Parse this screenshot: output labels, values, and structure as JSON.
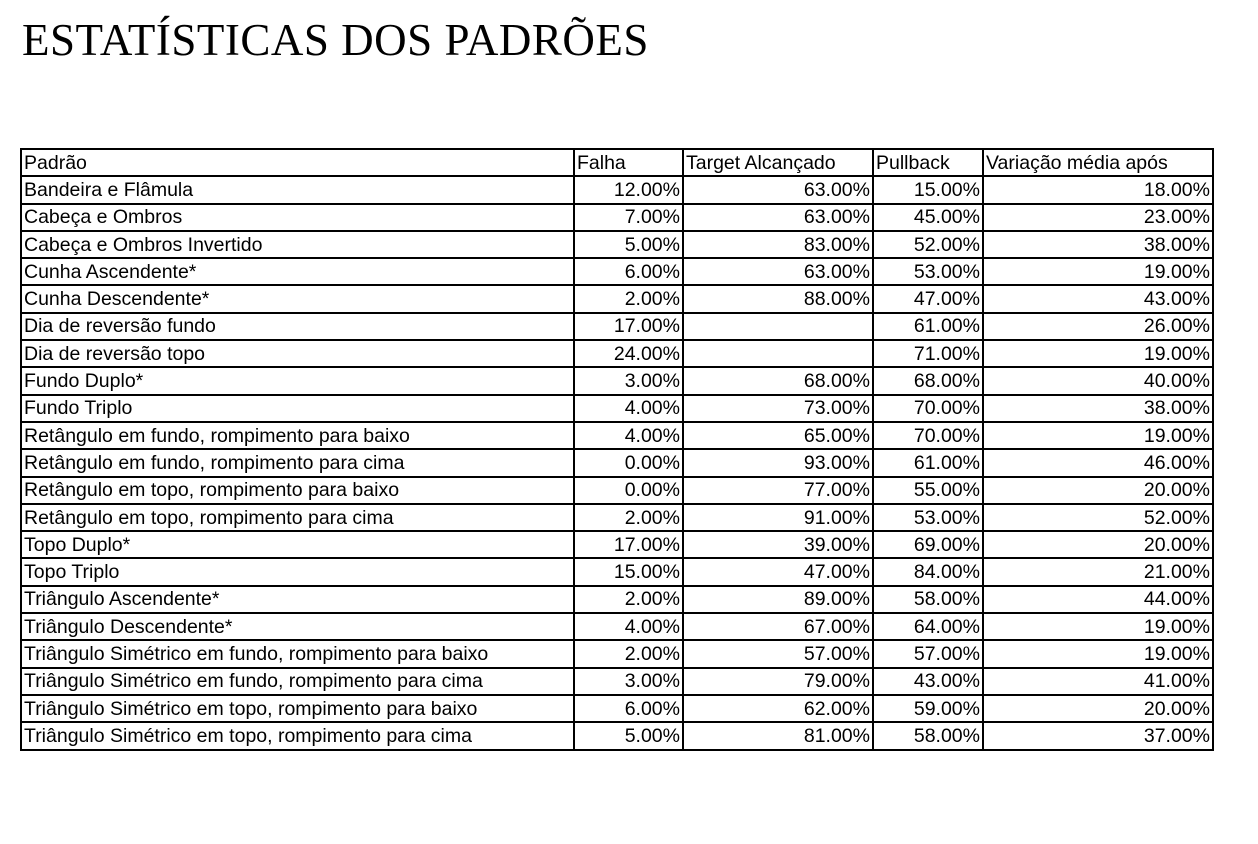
{
  "title": "ESTATÍSTICAS DOS PADRÕES",
  "table": {
    "headers": [
      "Padrão",
      "Falha",
      "Target Alcançado",
      "Pullback",
      "Variação média após"
    ],
    "rows": [
      [
        "Bandeira e Flâmula",
        "12.00%",
        "63.00%",
        "15.00%",
        "18.00%"
      ],
      [
        "Cabeça e Ombros",
        "7.00%",
        "63.00%",
        "45.00%",
        "23.00%"
      ],
      [
        "Cabeça e Ombros Invertido",
        "5.00%",
        "83.00%",
        "52.00%",
        "38.00%"
      ],
      [
        "Cunha Ascendente*",
        "6.00%",
        "63.00%",
        "53.00%",
        "19.00%"
      ],
      [
        "Cunha Descendente*",
        "2.00%",
        "88.00%",
        "47.00%",
        "43.00%"
      ],
      [
        "Dia de reversão fundo",
        "17.00%",
        "",
        "61.00%",
        "26.00%"
      ],
      [
        "Dia de reversão topo",
        "24.00%",
        "",
        "71.00%",
        "19.00%"
      ],
      [
        "Fundo Duplo*",
        "3.00%",
        "68.00%",
        "68.00%",
        "40.00%"
      ],
      [
        "Fundo Triplo",
        "4.00%",
        "73.00%",
        "70.00%",
        "38.00%"
      ],
      [
        "Retângulo em fundo, rompimento para baixo",
        "4.00%",
        "65.00%",
        "70.00%",
        "19.00%"
      ],
      [
        "Retângulo em fundo, rompimento para cima",
        "0.00%",
        "93.00%",
        "61.00%",
        "46.00%"
      ],
      [
        "Retângulo em topo, rompimento para baixo",
        "0.00%",
        "77.00%",
        "55.00%",
        "20.00%"
      ],
      [
        "Retângulo em topo, rompimento para cima",
        "2.00%",
        "91.00%",
        "53.00%",
        "52.00%"
      ],
      [
        "Topo Duplo*",
        "17.00%",
        "39.00%",
        "69.00%",
        "20.00%"
      ],
      [
        "Topo Triplo",
        "15.00%",
        "47.00%",
        "84.00%",
        "21.00%"
      ],
      [
        "Triângulo Ascendente*",
        "2.00%",
        "89.00%",
        "58.00%",
        "44.00%"
      ],
      [
        "Triângulo Descendente*",
        "4.00%",
        "67.00%",
        "64.00%",
        "19.00%"
      ],
      [
        "Triângulo Simétrico em fundo, rompimento para baixo",
        "2.00%",
        "57.00%",
        "57.00%",
        "19.00%"
      ],
      [
        "Triângulo Simétrico em fundo, rompimento para cima",
        "3.00%",
        "79.00%",
        "43.00%",
        "41.00%"
      ],
      [
        "Triângulo Simétrico em topo, rompimento para baixo",
        "6.00%",
        "62.00%",
        "59.00%",
        "20.00%"
      ],
      [
        "Triângulo Simétrico em topo, rompimento para cima",
        "5.00%",
        "81.00%",
        "58.00%",
        "37.00%"
      ]
    ]
  }
}
